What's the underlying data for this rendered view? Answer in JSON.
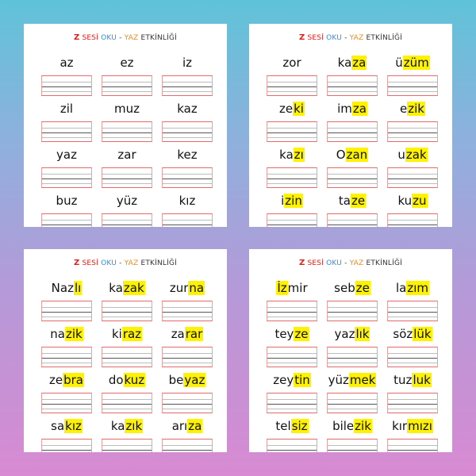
{
  "title": {
    "z": "Z",
    "sesi": "SESİ",
    "oku": "OKU",
    "dash": "-",
    "yaz": "YAZ",
    "etkinligi": "ETKİNLİĞİ"
  },
  "colors": {
    "title_red": "#e0201c",
    "title_blue": "#2d8fe0",
    "title_orange": "#f08a1c",
    "highlight": "#fff200"
  },
  "sheets": [
    {
      "words": [
        {
          "pre": "az",
          "hl": "",
          "post": ""
        },
        {
          "pre": "ez",
          "hl": "",
          "post": ""
        },
        {
          "pre": "iz",
          "hl": "",
          "post": ""
        },
        {
          "pre": "zil",
          "hl": "",
          "post": ""
        },
        {
          "pre": "muz",
          "hl": "",
          "post": ""
        },
        {
          "pre": "kaz",
          "hl": "",
          "post": ""
        },
        {
          "pre": "yaz",
          "hl": "",
          "post": ""
        },
        {
          "pre": "zar",
          "hl": "",
          "post": ""
        },
        {
          "pre": "kez",
          "hl": "",
          "post": ""
        },
        {
          "pre": "buz",
          "hl": "",
          "post": ""
        },
        {
          "pre": "yüz",
          "hl": "",
          "post": ""
        },
        {
          "pre": "kız",
          "hl": "",
          "post": ""
        }
      ]
    },
    {
      "words": [
        {
          "pre": "zor",
          "hl": "",
          "post": ""
        },
        {
          "pre": "ka",
          "hl": "za",
          "post": ""
        },
        {
          "pre": "ü",
          "hl": "züm",
          "post": ""
        },
        {
          "pre": "ze",
          "hl": "ki",
          "post": ""
        },
        {
          "pre": "im",
          "hl": "za",
          "post": ""
        },
        {
          "pre": "e",
          "hl": "zik",
          "post": ""
        },
        {
          "pre": "ka",
          "hl": "zı",
          "post": ""
        },
        {
          "pre": "O",
          "hl": "zan",
          "post": ""
        },
        {
          "pre": "u",
          "hl": "zak",
          "post": ""
        },
        {
          "pre": "i",
          "hl": "zin",
          "post": ""
        },
        {
          "pre": "ta",
          "hl": "ze",
          "post": ""
        },
        {
          "pre": "ku",
          "hl": "zu",
          "post": ""
        }
      ]
    },
    {
      "words": [
        {
          "pre": "Naz",
          "hl": "lı",
          "post": ""
        },
        {
          "pre": "ka",
          "hl": "zak",
          "post": ""
        },
        {
          "pre": "zur",
          "hl": "na",
          "post": ""
        },
        {
          "pre": "na",
          "hl": "zik",
          "post": ""
        },
        {
          "pre": "ki",
          "hl": "raz",
          "post": ""
        },
        {
          "pre": "za",
          "hl": "rar",
          "post": ""
        },
        {
          "pre": "ze",
          "hl": "bra",
          "post": ""
        },
        {
          "pre": "do",
          "hl": "kuz",
          "post": ""
        },
        {
          "pre": "be",
          "hl": "yaz",
          "post": ""
        },
        {
          "pre": "sa",
          "hl": "kız",
          "post": ""
        },
        {
          "pre": "ka",
          "hl": "zık",
          "post": ""
        },
        {
          "pre": "arı",
          "hl": "za",
          "post": ""
        }
      ]
    },
    {
      "words": [
        {
          "pre": "",
          "hl": "İz",
          "post": "mir"
        },
        {
          "pre": "seb",
          "hl": "ze",
          "post": ""
        },
        {
          "pre": "la",
          "hl": "zım",
          "post": ""
        },
        {
          "pre": "tey",
          "hl": "ze",
          "post": ""
        },
        {
          "pre": "yaz",
          "hl": "lık",
          "post": ""
        },
        {
          "pre": "söz",
          "hl": "lük",
          "post": ""
        },
        {
          "pre": "zey",
          "hl": "tin",
          "post": ""
        },
        {
          "pre": "yüz",
          "hl": "mek",
          "post": ""
        },
        {
          "pre": "tuz",
          "hl": "luk",
          "post": ""
        },
        {
          "pre": "tel",
          "hl": "siz",
          "post": ""
        },
        {
          "pre": "bile",
          "hl": "zik",
          "post": ""
        },
        {
          "pre": "kır",
          "hl": "mızı",
          "post": ""
        }
      ]
    }
  ]
}
